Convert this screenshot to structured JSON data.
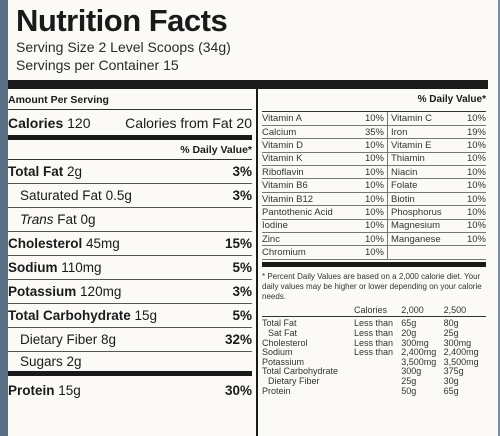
{
  "title": "Nutrition Facts",
  "serving_size": "Serving Size 2 Level Scoops (34g)",
  "servings_per_container": "Servings per Container 15",
  "amount_per_serving": "Amount Per Serving",
  "calories": {
    "label": "Calories",
    "value": "120",
    "from_fat": "Calories from Fat 20"
  },
  "daily_value_header": "% Daily Value*",
  "nutrients": [
    {
      "name": "Total Fat",
      "amount": "2g",
      "dv": "3%"
    },
    {
      "name": "Saturated Fat",
      "amount": "0.5g",
      "dv": "3%"
    },
    {
      "name": "Trans",
      "name_suffix": " Fat 0g",
      "amount": "",
      "dv": ""
    },
    {
      "name": "Cholesterol",
      "amount": "45mg",
      "dv": "15%"
    },
    {
      "name": "Sodium",
      "amount": "110mg",
      "dv": "5%"
    },
    {
      "name": "Potassium",
      "amount": "120mg",
      "dv": "3%"
    },
    {
      "name": "Total Carbohydrate",
      "amount": "15g",
      "dv": "5%"
    },
    {
      "name": "Dietary Fiber",
      "amount": "8g",
      "dv": "32%"
    },
    {
      "name": "Sugars",
      "amount": "2g",
      "dv": ""
    },
    {
      "name": "Protein",
      "amount": "15g",
      "dv": "30%"
    }
  ],
  "vitamins": [
    [
      "Vitamin A",
      "10%",
      "Vitamin C",
      "10%"
    ],
    [
      "Calcium",
      "35%",
      "Iron",
      "19%"
    ],
    [
      "Vitamin D",
      "10%",
      "Vitamin E",
      "10%"
    ],
    [
      "Vitamin K",
      "10%",
      "Thiamin",
      "10%"
    ],
    [
      "Riboflavin",
      "10%",
      "Niacin",
      "10%"
    ],
    [
      "Vitamin B6",
      "10%",
      "Folate",
      "10%"
    ],
    [
      "Vitamin B12",
      "10%",
      "Biotin",
      "10%"
    ],
    [
      "Pantothenic Acid",
      "10%",
      "Phosphorus",
      "10%"
    ],
    [
      "Iodine",
      "10%",
      "Magnesium",
      "10%"
    ],
    [
      "Zinc",
      "10%",
      "Manganese",
      "10%"
    ],
    [
      "Chromium",
      "10%",
      "",
      ""
    ]
  ],
  "footnote": "* Percent Daily Values are based on a 2,000 calorie diet. Your daily values may be higher or lower depending on your calorie needs.",
  "dv_table": {
    "header": [
      "",
      "Calories",
      "2,000",
      "2,500"
    ],
    "rows": [
      [
        "Total Fat",
        "Less than",
        "65g",
        "80g"
      ],
      [
        "Sat Fat",
        "Less than",
        "20g",
        "25g"
      ],
      [
        "Cholesterol",
        "Less than",
        "300mg",
        "300mg"
      ],
      [
        "Sodium",
        "Less than",
        "2,400mg",
        "2,400mg"
      ],
      [
        "Potassium",
        "",
        "3,500mg",
        "3,500mg"
      ],
      [
        "Total Carbohydrate",
        "",
        "300g",
        "375g"
      ],
      [
        "Dietary Fiber",
        "",
        "25g",
        "30g"
      ],
      [
        "Protein",
        "",
        "50g",
        "65g"
      ]
    ]
  }
}
